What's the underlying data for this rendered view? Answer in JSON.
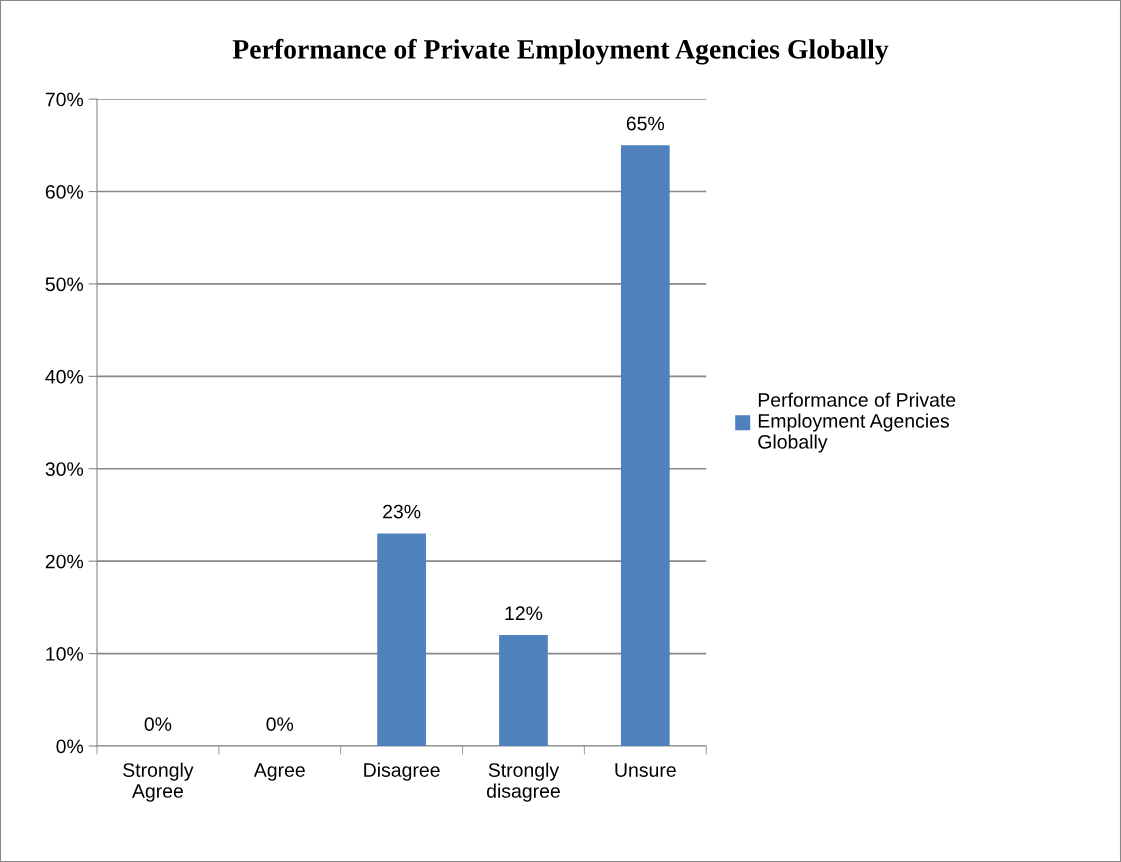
{
  "chart_data": {
    "type": "bar",
    "title": "Performance of Private Employment Agencies Globally",
    "categories": [
      "Strongly\nAgree",
      "Agree",
      "Disagree",
      "Strongly\ndisagree",
      "Unsure"
    ],
    "series": [
      {
        "name": "Performance of Private Employment Agencies Globally",
        "color": "#4f81bd",
        "values": [
          0,
          0,
          23,
          12,
          65
        ],
        "value_labels": [
          "0%",
          "0%",
          "23%",
          "12%",
          "65%"
        ]
      }
    ],
    "ylim": [
      0,
      70
    ],
    "yticks": [
      {
        "value": 0,
        "label": "0%"
      },
      {
        "value": 10,
        "label": "10%"
      },
      {
        "value": 20,
        "label": "20%"
      },
      {
        "value": 30,
        "label": "30%"
      },
      {
        "value": 40,
        "label": "40%"
      },
      {
        "value": 50,
        "label": "50%"
      },
      {
        "value": 60,
        "label": "60%"
      },
      {
        "value": 70,
        "label": "70%"
      }
    ],
    "grid": "y",
    "legend": "right"
  }
}
